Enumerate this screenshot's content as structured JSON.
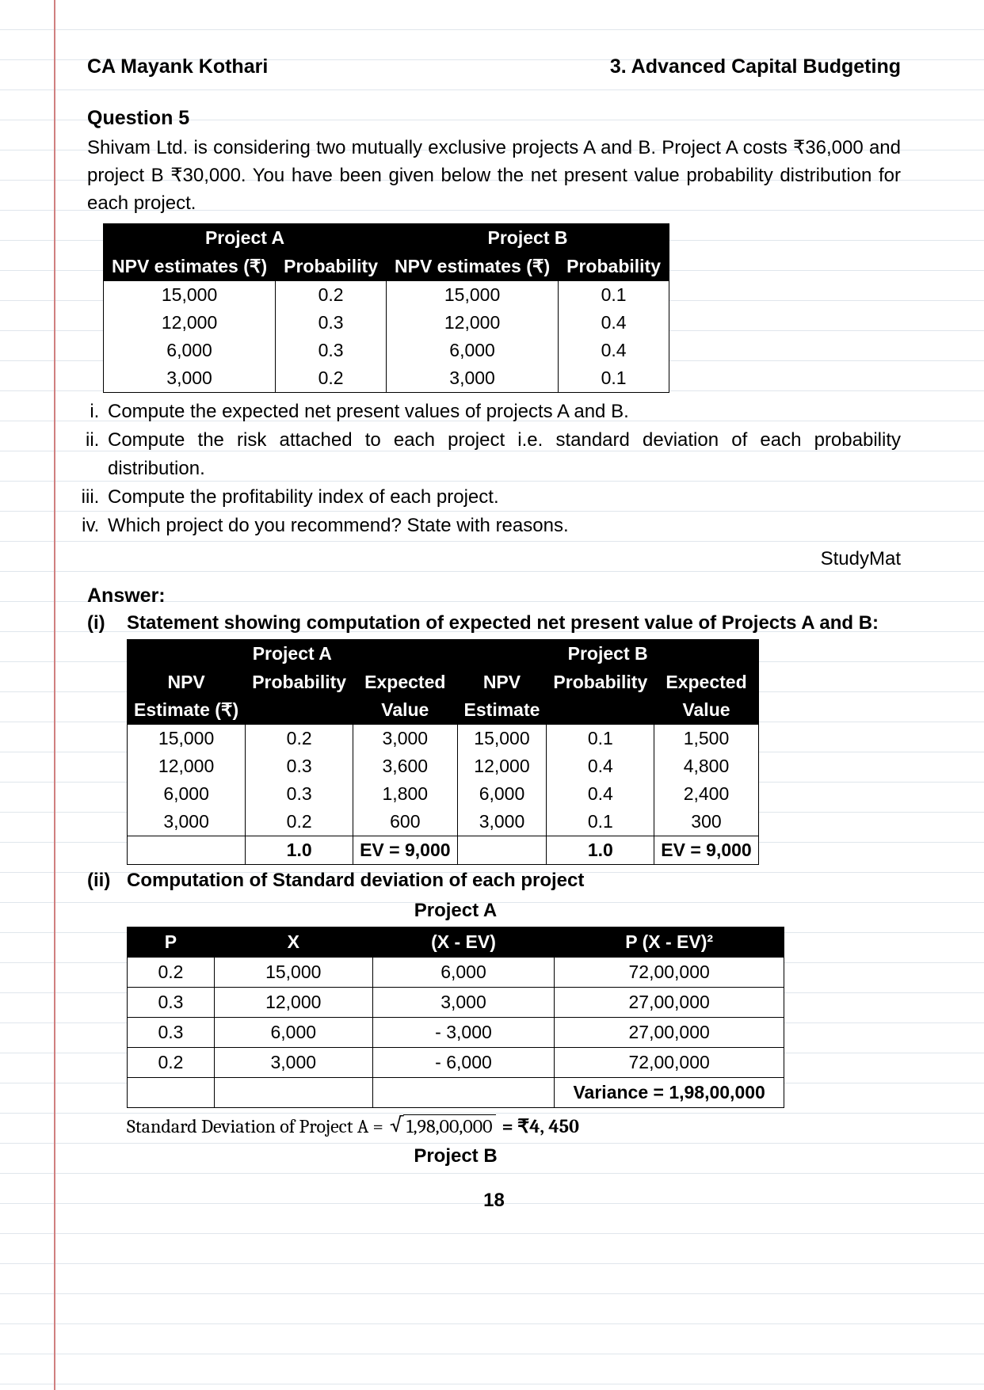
{
  "header": {
    "left": "CA Mayank Kothari",
    "right": "3. Advanced Capital Budgeting"
  },
  "question": {
    "title": "Question 5",
    "intro": "Shivam Ltd. is considering two mutually exclusive projects A and B. Project A costs ₹36,000 and project B ₹30,000. You have been given below the net present value probability distribution for each project.",
    "table1": {
      "group_headers": [
        "Project A",
        "Project B"
      ],
      "columns": [
        "NPV estimates (₹)",
        "Probability",
        "NPV estimates (₹)",
        "Probability"
      ],
      "rows": [
        [
          "15,000",
          "0.2",
          "15,000",
          "0.1"
        ],
        [
          "12,000",
          "0.3",
          "12,000",
          "0.4"
        ],
        [
          "6,000",
          "0.3",
          "6,000",
          "0.4"
        ],
        [
          "3,000",
          "0.2",
          "3,000",
          "0.1"
        ]
      ]
    },
    "items": [
      "Compute the expected net present values of projects A and B.",
      "Compute the risk attached to each project i.e. standard deviation of each probability distribution.",
      "Compute the profitability index of each project.",
      "Which project do you recommend? State with reasons."
    ],
    "source": "StudyMat"
  },
  "answer": {
    "label": "Answer:",
    "part_i": {
      "num": "(i)",
      "text": "Statement showing computation of expected net present value of Projects A and B:",
      "table": {
        "group_headers": [
          "Project A",
          "Project B"
        ],
        "columns_row1": [
          "NPV",
          "Probability",
          "Expected",
          "NPV",
          "Probability",
          "Expected"
        ],
        "columns_row2": [
          "Estimate (₹)",
          "",
          "Value",
          "Estimate",
          "",
          "Value"
        ],
        "rows": [
          [
            "15,000",
            "0.2",
            "3,000",
            "15,000",
            "0.1",
            "1,500"
          ],
          [
            "12,000",
            "0.3",
            "3,600",
            "12,000",
            "0.4",
            "4,800"
          ],
          [
            "6,000",
            "0.3",
            "1,800",
            "6,000",
            "0.4",
            "2,400"
          ],
          [
            "3,000",
            "0.2",
            "600",
            "3,000",
            "0.1",
            "300"
          ]
        ],
        "totals": [
          "",
          "1.0",
          "EV = 9,000",
          "",
          "1.0",
          "EV = 9,000"
        ]
      }
    },
    "part_ii": {
      "num": "(ii)",
      "text": "Computation of Standard deviation of each project",
      "projectA_label": "Project A",
      "tableA": {
        "columns": [
          "P",
          "X",
          "(X - EV)",
          "P (X - EV)²"
        ],
        "rows": [
          [
            "0.2",
            "15,000",
            "6,000",
            "72,00,000"
          ],
          [
            "0.3",
            "12,000",
            "3,000",
            "27,00,000"
          ],
          [
            "0.3",
            "6,000",
            "- 3,000",
            "27,00,000"
          ],
          [
            "0.2",
            "3,000",
            "- 6,000",
            "72,00,000"
          ]
        ],
        "total": [
          "",
          "",
          "",
          "Variance = 1,98,00,000"
        ]
      },
      "sd_text_prefix": "Standard Deviation of Project A  = ",
      "sd_sqrt_arg": "1,98,00,000",
      "sd_result": " = ₹4, 450",
      "projectB_label": "Project B"
    }
  },
  "page_number": "18",
  "colors": {
    "rule": "#e0e6ec",
    "margin": "#d08080",
    "header_bg": "#000000",
    "header_fg": "#ffffff",
    "text": "#000000"
  }
}
